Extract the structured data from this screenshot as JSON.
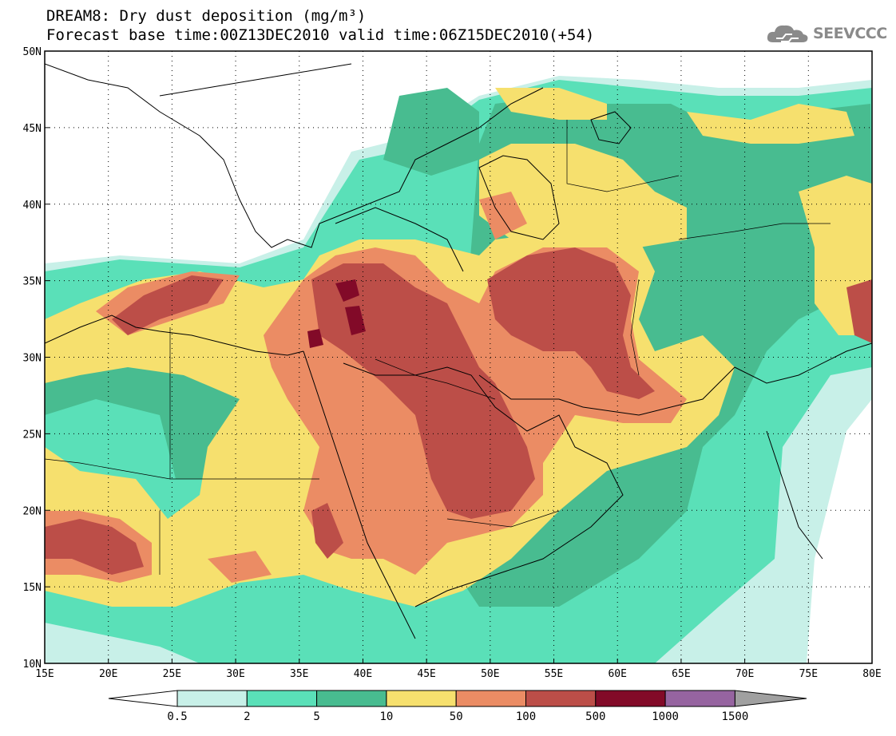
{
  "title": {
    "line1": "DREAM8: Dry dust deposition (mg/m³)",
    "line2": "Forecast base time:00Z13DEC2010 valid time:06Z15DEC2010(+54)"
  },
  "logo": {
    "text": "SEEVCCC",
    "icon": "cloud-icon"
  },
  "map": {
    "lon_range": [
      15,
      80
    ],
    "lat_range": [
      10,
      50
    ],
    "lon_labels": [
      "15E",
      "20E",
      "25E",
      "30E",
      "35E",
      "40E",
      "45E",
      "50E",
      "55E",
      "60E",
      "65E",
      "70E",
      "75E",
      "80E"
    ],
    "lat_labels": [
      "50N",
      "45N",
      "40N",
      "35N",
      "30N",
      "25N",
      "20N",
      "15N",
      "10N"
    ],
    "grid": true,
    "colorbar": {
      "levels": [
        "0.5",
        "2",
        "5",
        "10",
        "50",
        "100",
        "500",
        "1000",
        "1500"
      ],
      "colors": [
        "#c8f0e8",
        "#5ae0b8",
        "#48bc90",
        "#f6e06e",
        "#eb8c64",
        "#bc4e48",
        "#820a28",
        "#9664a0"
      ],
      "under_color": "#ffffff",
      "over_color": "#a0a0a0"
    }
  }
}
